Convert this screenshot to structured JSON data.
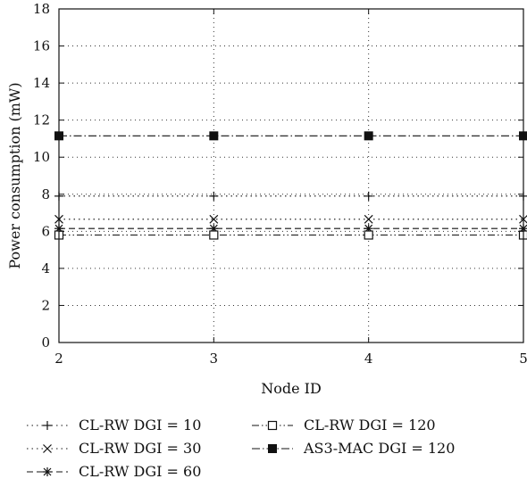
{
  "chart_data": {
    "type": "line",
    "xlabel": "Node ID",
    "ylabel": "Power consumption (mW)",
    "x": [
      2,
      3,
      4,
      5
    ],
    "xlim": [
      2,
      5
    ],
    "ylim": [
      0,
      18
    ],
    "xticks": [
      2,
      3,
      4,
      5
    ],
    "yticks": [
      0,
      2,
      4,
      6,
      8,
      10,
      12,
      14,
      16,
      18
    ],
    "grid": true,
    "legend_position": "below",
    "series": [
      {
        "name": "CL-RW DGI = 10",
        "values": [
          7.9,
          7.9,
          7.9,
          7.9
        ],
        "marker": "plus",
        "dash": "dotted"
      },
      {
        "name": "CL-RW DGI = 30",
        "values": [
          6.65,
          6.65,
          6.65,
          6.65
        ],
        "marker": "x",
        "dash": "dotted"
      },
      {
        "name": "CL-RW DGI = 60",
        "values": [
          6.15,
          6.15,
          6.15,
          6.15
        ],
        "marker": "star",
        "dash": "dashed"
      },
      {
        "name": "CL-RW DGI = 120",
        "values": [
          5.8,
          5.8,
          5.8,
          5.8
        ],
        "marker": "open-square",
        "dash": "dash-dot-dot"
      },
      {
        "name": "AS3-MAC DGI = 120",
        "values": [
          11.15,
          11.15,
          11.15,
          11.15
        ],
        "marker": "filled-square",
        "dash": "dash-dot"
      }
    ]
  }
}
